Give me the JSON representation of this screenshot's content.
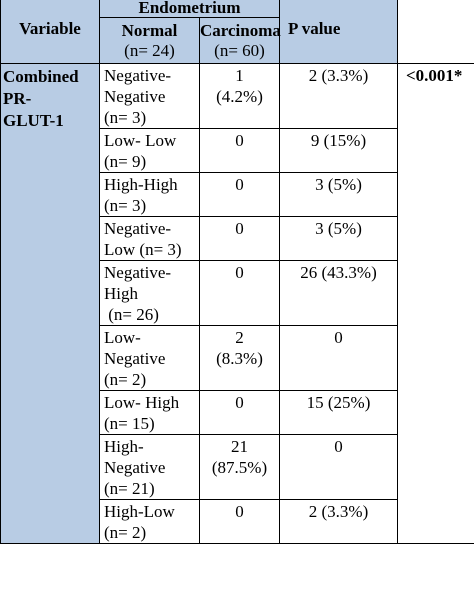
{
  "header": {
    "variable": "Variable",
    "group": "Endometrium",
    "normal_label": "Normal",
    "normal_n": "(n= 24)",
    "carcinoma_label": "Carcinoma",
    "carcinoma_n": "(n= 60)",
    "pvalue": "P value"
  },
  "group_label": [
    "Combined",
    "PR-",
    "GLUT-1"
  ],
  "pvalue": "<0.001*",
  "rows": [
    {
      "label": [
        "Negative-",
        "Negative",
        "(n= 3)"
      ],
      "normal": [
        "1",
        "(4.2%)"
      ],
      "carcinoma": "2 (3.3%)"
    },
    {
      "label": [
        "Low- Low",
        "(n= 9)"
      ],
      "normal": [
        "0"
      ],
      "carcinoma": "9 (15%)"
    },
    {
      "label": [
        "High-High",
        "(n= 3)"
      ],
      "normal": [
        "0"
      ],
      "carcinoma": "3 (5%)"
    },
    {
      "label": [
        "Negative-",
        "Low (n= 3)"
      ],
      "normal": [
        "0"
      ],
      "carcinoma": "3 (5%)"
    },
    {
      "label": [
        "Negative-",
        "High",
        " (n= 26)"
      ],
      "normal": [
        "0"
      ],
      "carcinoma": "26 (43.3%)"
    },
    {
      "label": [
        "Low-",
        "Negative",
        "(n= 2)"
      ],
      "normal": [
        "2",
        "(8.3%)"
      ],
      "carcinoma": "0"
    },
    {
      "label": [
        "Low- High",
        "(n= 15)"
      ],
      "normal": [
        "0"
      ],
      "carcinoma": "15 (25%)"
    },
    {
      "label": [
        "High-",
        "Negative",
        "(n= 21)"
      ],
      "normal": [
        "21",
        "(87.5%)"
      ],
      "carcinoma": "0"
    },
    {
      "label": [
        "High-Low",
        "(n= 2)"
      ],
      "normal": [
        "0"
      ],
      "carcinoma": "2 (3.3%)"
    }
  ]
}
